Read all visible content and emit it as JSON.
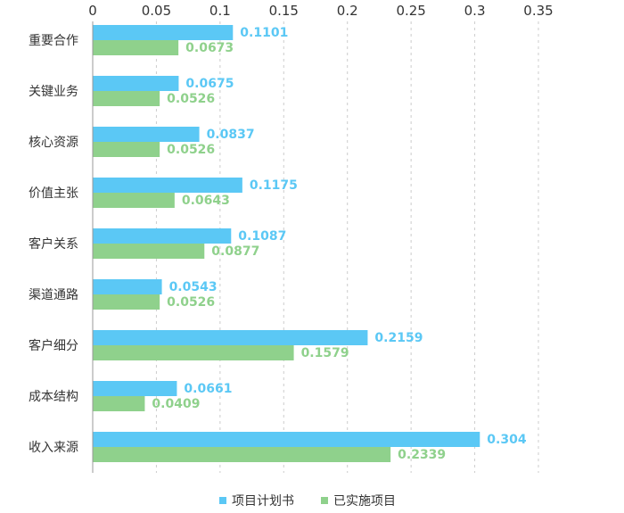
{
  "chart_data": {
    "type": "bar",
    "orientation": "horizontal",
    "categories": [
      "重要合作",
      "关键业务",
      "核心资源",
      "价值主张",
      "客户关系",
      "渠道通路",
      "客户细分",
      "成本结构",
      "收入来源"
    ],
    "series": [
      {
        "name": "项目计划书",
        "color": "#5bc8f5",
        "values": [
          0.1101,
          0.0675,
          0.0837,
          0.1175,
          0.1087,
          0.0543,
          0.2159,
          0.0661,
          0.304
        ],
        "labels": [
          "0.1101",
          "0.0675",
          "0.0837",
          "0.1175",
          "0.1087",
          "0.0543",
          "0.2159",
          "0.0661",
          "0.304"
        ]
      },
      {
        "name": "已实施项目",
        "color": "#8fd18c",
        "values": [
          0.0673,
          0.0526,
          0.0526,
          0.0643,
          0.0877,
          0.0526,
          0.1579,
          0.0409,
          0.2339
        ],
        "labels": [
          "0.0673",
          "0.0526",
          "0.0526",
          "0.0643",
          "0.0877",
          "0.0526",
          "0.1579",
          "0.0409",
          "0.2339"
        ]
      }
    ],
    "xlim": [
      0,
      0.35
    ],
    "xticks": [
      "0",
      "0.05",
      "0.1",
      "0.15",
      "0.2",
      "0.25",
      "0.3",
      "0.35"
    ],
    "grid": "vertical dashed",
    "axis_position": "top",
    "legend_position": "bottom-center"
  }
}
